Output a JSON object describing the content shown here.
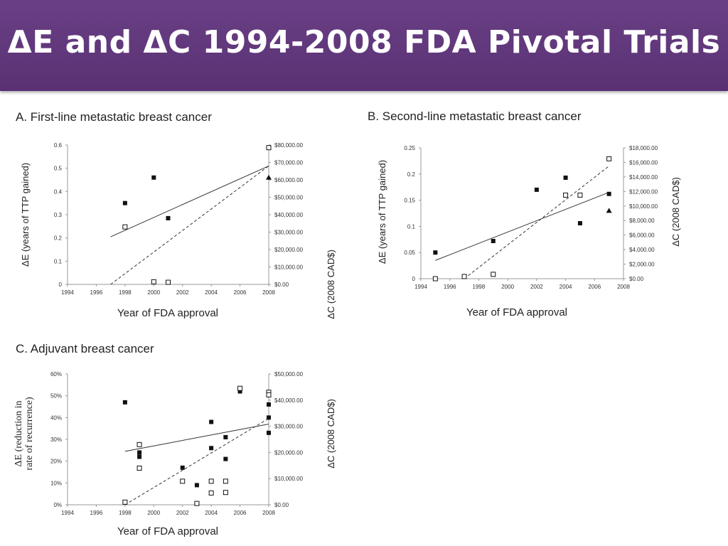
{
  "header": {
    "title": "ΔE and ΔC 1994-2008 FDA Pivotal Trials"
  },
  "chart_data": [
    {
      "type": "scatter",
      "title": "A. First-line metastatic breast cancer",
      "xlabel": "Year of FDA approval",
      "ylabel_left": "ΔE (years of TTP gained)",
      "ylabel_right": "ΔC (2008 CAD$)",
      "xlim": [
        1994,
        2008
      ],
      "ylim_left": [
        0,
        0.6
      ],
      "ylim_right": [
        0,
        80000
      ],
      "x_ticks": [
        "1994",
        "1996",
        "1998",
        "2000",
        "2002",
        "2004",
        "2006",
        "2008"
      ],
      "y_left_ticks": [
        "0",
        "0.1",
        "0.2",
        "0.3",
        "0.4",
        "0.5",
        "0.6"
      ],
      "y_right_ticks": [
        "$0.00",
        "$10,000.00",
        "$20,000.00",
        "$30,000.00",
        "$40,000.00",
        "$50,000.00",
        "$60,000.00",
        "$70,000.00",
        "$80,000.00"
      ],
      "series": [
        {
          "marker": "filled-square",
          "axis": "left",
          "points": [
            [
              1998,
              0.35
            ],
            [
              2000,
              0.46
            ],
            [
              2001,
              0.285
            ]
          ]
        },
        {
          "marker": "open-square",
          "axis": "right",
          "points": [
            [
              1998,
              33000
            ],
            [
              2000,
              1500
            ],
            [
              2001,
              1200
            ],
            [
              2008,
              78500
            ]
          ]
        },
        {
          "marker": "filled-triangle",
          "axis": "left",
          "points": [
            [
              2008,
              0.46
            ]
          ]
        }
      ],
      "trendlines": [
        {
          "style": "solid",
          "axis": "left",
          "from": [
            1997,
            0.205
          ],
          "to": [
            2008,
            0.51
          ]
        },
        {
          "style": "dashed",
          "axis": "right",
          "from": [
            1997,
            0
          ],
          "to": [
            2008,
            68000
          ]
        }
      ]
    },
    {
      "type": "scatter",
      "title": "B. Second-line metastatic breast cancer",
      "xlabel": "Year of FDA approval",
      "ylabel_left": "ΔE (years of TTP gained)",
      "ylabel_right": "ΔC (2008 CAD$)",
      "xlim": [
        1994,
        2008
      ],
      "ylim_left": [
        0,
        0.25
      ],
      "ylim_right": [
        0,
        18000
      ],
      "x_ticks": [
        "1994",
        "1996",
        "1998",
        "2000",
        "2002",
        "2004",
        "2006",
        "2008"
      ],
      "y_left_ticks": [
        "0",
        "0.05",
        "0.1",
        "0.15",
        "0.2",
        "0.25"
      ],
      "y_right_ticks": [
        "$0.00",
        "$2,000.00",
        "$4,000.00",
        "$6,000.00",
        "$8,000.00",
        "$10,000.00",
        "$12,000.00",
        "$14,000.00",
        "$16,000.00",
        "$18,000.00"
      ],
      "series": [
        {
          "marker": "filled-square",
          "axis": "left",
          "points": [
            [
              1995,
              0.05
            ],
            [
              1999,
              0.072
            ],
            [
              2002,
              0.17
            ],
            [
              2004,
              0.193
            ],
            [
              2005,
              0.106
            ],
            [
              2007,
              0.162
            ]
          ]
        },
        {
          "marker": "open-square",
          "axis": "right",
          "points": [
            [
              1995,
              0
            ],
            [
              1997,
              300
            ],
            [
              1999,
              600
            ],
            [
              2004,
              11500
            ],
            [
              2005,
              11500
            ],
            [
              2007,
              16500
            ]
          ]
        },
        {
          "marker": "filled-triangle",
          "axis": "left",
          "points": [
            [
              2007,
              0.13
            ]
          ]
        }
      ],
      "trendlines": [
        {
          "style": "solid",
          "axis": "left",
          "from": [
            1995,
            0.035
          ],
          "to": [
            2007,
            0.165
          ]
        },
        {
          "style": "dashed",
          "axis": "right",
          "from": [
            1997,
            0
          ],
          "to": [
            2007,
            15500
          ]
        }
      ]
    },
    {
      "type": "scatter",
      "title": "C. Adjuvant breast cancer",
      "xlabel": "Year of FDA approval",
      "ylabel_left": [
        "ΔE  (reduction in",
        "rate of recurrence)"
      ],
      "ylabel_right": "ΔC (2008 CAD$)",
      "xlim": [
        1994,
        2008
      ],
      "ylim_left": [
        0,
        60
      ],
      "ylim_right": [
        0,
        50000
      ],
      "x_ticks": [
        "1994",
        "1996",
        "1998",
        "2000",
        "2002",
        "2004",
        "2006",
        "2008"
      ],
      "y_left_ticks": [
        "0%",
        "10%",
        "20%",
        "30%",
        "40%",
        "50%",
        "60%"
      ],
      "y_right_ticks": [
        "$0.00",
        "$10,000.00",
        "$20,000.00",
        "$30,000.00",
        "$40,000.00",
        "$50,000.00"
      ],
      "series": [
        {
          "marker": "filled-square",
          "axis": "left",
          "points": [
            [
              1998,
              47
            ],
            [
              1999,
              24
            ],
            [
              1999,
              22
            ],
            [
              2002,
              17
            ],
            [
              2003,
              9
            ],
            [
              2004,
              38
            ],
            [
              2004,
              26
            ],
            [
              2005,
              31
            ],
            [
              2005,
              21
            ],
            [
              2006,
              52
            ],
            [
              2008,
              46
            ],
            [
              2008,
              40
            ],
            [
              2008,
              33
            ]
          ]
        },
        {
          "marker": "open-square",
          "axis": "right",
          "points": [
            [
              1998,
              1000
            ],
            [
              1999,
              23000
            ],
            [
              1999,
              14000
            ],
            [
              2002,
              9000
            ],
            [
              2003,
              500
            ],
            [
              2004,
              9000
            ],
            [
              2004,
              4500
            ],
            [
              2005,
              9000
            ],
            [
              2005,
              4700
            ],
            [
              2006,
              44500
            ],
            [
              2008,
              43000
            ],
            [
              2008,
              42000
            ]
          ]
        }
      ],
      "trendlines": [
        {
          "style": "solid",
          "axis": "left",
          "from": [
            1998,
            24.5
          ],
          "to": [
            2008,
            37
          ]
        },
        {
          "style": "dashed",
          "axis": "right",
          "from": [
            1998,
            0
          ],
          "to": [
            2008,
            33000
          ]
        }
      ]
    }
  ]
}
